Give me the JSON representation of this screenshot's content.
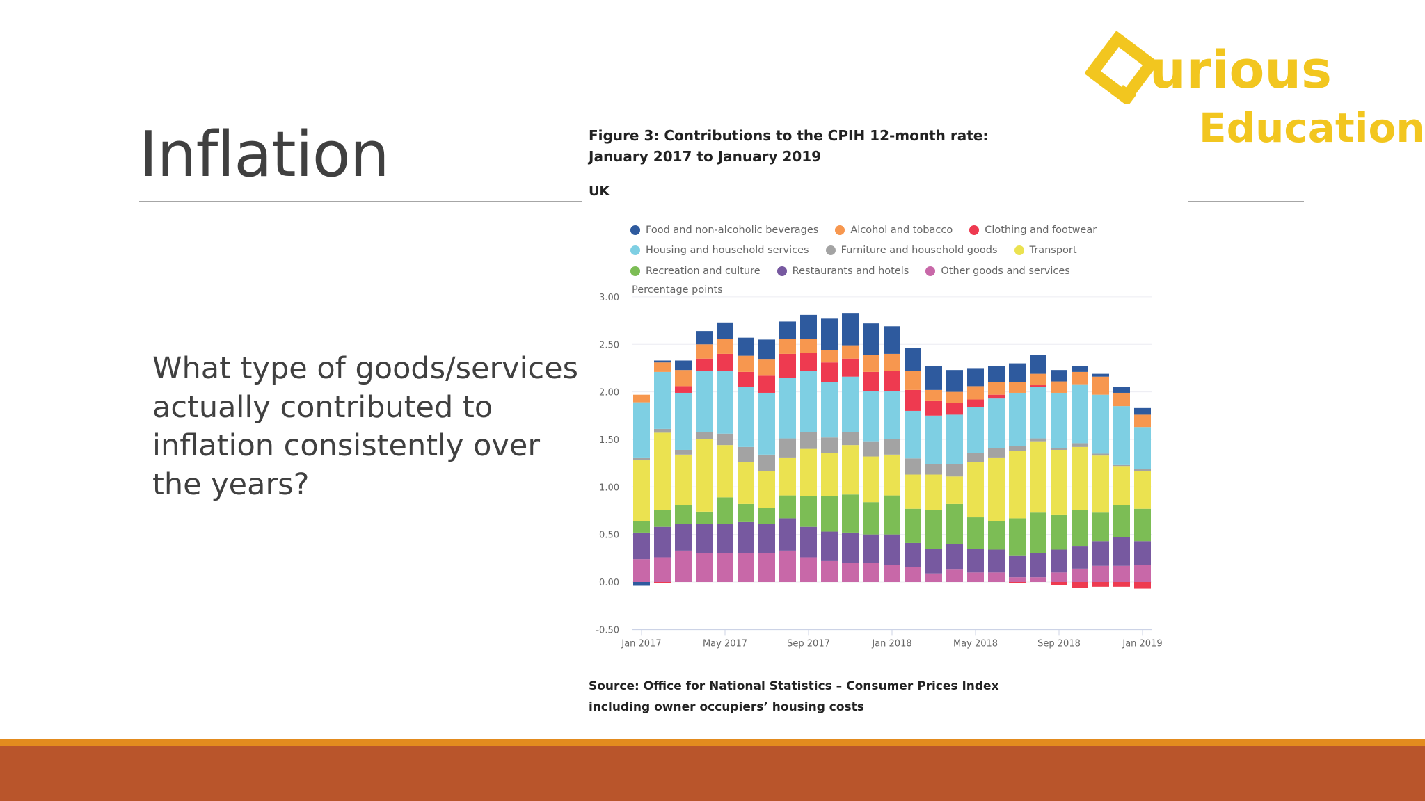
{
  "slide": {
    "title": "Inflation",
    "question": "What type of goods/services actually contributed to inflation consistently over the years?"
  },
  "logo": {
    "word1": "urious",
    "word2": "Education",
    "letter": "Q",
    "color": "#F2C61F"
  },
  "colors": {
    "band_top": "#E38B1E",
    "band": "#B9552B"
  },
  "figure": {
    "title": "Figure 3: Contributions to the CPIH 12-month rate: January 2017 to January 2019",
    "geography": "UK",
    "source": "Source: Office for National Statistics – Consumer Prices Index including owner occupiers’ housing costs"
  },
  "chart_data": {
    "type": "bar",
    "stacked": true,
    "ylabel": "Percentage points",
    "ylim": [
      -0.5,
      3.0
    ],
    "yticks": [
      "3.00",
      "2.50",
      "2.00",
      "1.50",
      "1.00",
      "0.50",
      "0.00",
      "-0.50"
    ],
    "grid": true,
    "legend_position": "top",
    "categories": [
      "Jan 2017",
      "Feb 2017",
      "Mar 2017",
      "Apr 2017",
      "May 2017",
      "Jun 2017",
      "Jul 2017",
      "Aug 2017",
      "Sep 2017",
      "Oct 2017",
      "Nov 2017",
      "Dec 2017",
      "Jan 2018",
      "Feb 2018",
      "Mar 2018",
      "Apr 2018",
      "May 2018",
      "Jun 2018",
      "Jul 2018",
      "Aug 2018",
      "Sep 2018",
      "Oct 2018",
      "Nov 2018",
      "Dec 2018",
      "Jan 2019"
    ],
    "xtick_labels": [
      "Jan 2017",
      "May 2017",
      "Sep 2017",
      "Jan 2018",
      "May 2018",
      "Sep 2018",
      "Jan 2019"
    ],
    "legend_rows": [
      [
        0,
        1,
        2
      ],
      [
        3,
        4,
        5
      ],
      [
        6,
        7,
        8
      ]
    ],
    "stack_order": [
      8,
      7,
      6,
      5,
      4,
      3,
      2,
      1,
      0
    ],
    "series": [
      {
        "name": "Food and non-alcoholic beverages",
        "color": "#2E5A9E",
        "values": [
          -0.04,
          0.02,
          0.1,
          0.14,
          0.17,
          0.19,
          0.21,
          0.18,
          0.25,
          0.33,
          0.34,
          0.33,
          0.29,
          0.24,
          0.25,
          0.23,
          0.19,
          0.17,
          0.2,
          0.2,
          0.12,
          0.06,
          0.03,
          0.06,
          0.07
        ]
      },
      {
        "name": "Alcohol and tobacco",
        "color": "#F7974F",
        "values": [
          0.08,
          0.1,
          0.17,
          0.15,
          0.16,
          0.17,
          0.17,
          0.16,
          0.15,
          0.13,
          0.14,
          0.18,
          0.18,
          0.2,
          0.11,
          0.12,
          0.14,
          0.13,
          0.11,
          0.12,
          0.12,
          0.13,
          0.19,
          0.14,
          0.13
        ]
      },
      {
        "name": "Clothing and footwear",
        "color": "#EE3A50",
        "values": [
          0,
          -0.01,
          0.07,
          0.13,
          0.18,
          0.16,
          0.18,
          0.25,
          0.19,
          0.21,
          0.19,
          0.2,
          0.21,
          0.22,
          0.16,
          0.12,
          0.08,
          0.04,
          -0.01,
          0.02,
          -0.03,
          -0.06,
          -0.05,
          -0.05,
          -0.07
        ]
      },
      {
        "name": "Housing and household services",
        "color": "#7ECFE3",
        "values": [
          0.58,
          0.6,
          0.6,
          0.64,
          0.66,
          0.63,
          0.65,
          0.64,
          0.64,
          0.58,
          0.58,
          0.53,
          0.51,
          0.5,
          0.51,
          0.52,
          0.48,
          0.52,
          0.56,
          0.54,
          0.58,
          0.62,
          0.62,
          0.62,
          0.44
        ]
      },
      {
        "name": "Furniture and household goods",
        "color": "#A3A3A3",
        "values": [
          0.03,
          0.04,
          0.05,
          0.08,
          0.12,
          0.16,
          0.17,
          0.2,
          0.18,
          0.16,
          0.14,
          0.16,
          0.16,
          0.17,
          0.11,
          0.13,
          0.1,
          0.1,
          0.05,
          0.03,
          0.02,
          0.04,
          0.02,
          0.01,
          0.02
        ]
      },
      {
        "name": "Transport",
        "color": "#EBE250",
        "values": [
          0.64,
          0.81,
          0.53,
          0.76,
          0.55,
          0.44,
          0.39,
          0.4,
          0.5,
          0.46,
          0.52,
          0.48,
          0.43,
          0.36,
          0.37,
          0.29,
          0.58,
          0.67,
          0.71,
          0.75,
          0.68,
          0.66,
          0.6,
          0.41,
          0.4
        ]
      },
      {
        "name": "Recreation and culture",
        "color": "#7CBD55",
        "values": [
          0.12,
          0.18,
          0.2,
          0.13,
          0.28,
          0.19,
          0.17,
          0.24,
          0.32,
          0.37,
          0.4,
          0.34,
          0.41,
          0.36,
          0.41,
          0.42,
          0.33,
          0.3,
          0.39,
          0.43,
          0.37,
          0.38,
          0.3,
          0.34,
          0.34
        ]
      },
      {
        "name": "Restaurants and hotels",
        "color": "#7759A0",
        "values": [
          0.28,
          0.32,
          0.28,
          0.31,
          0.31,
          0.33,
          0.31,
          0.34,
          0.32,
          0.31,
          0.32,
          0.3,
          0.32,
          0.25,
          0.26,
          0.27,
          0.25,
          0.24,
          0.23,
          0.25,
          0.24,
          0.24,
          0.26,
          0.3,
          0.25
        ]
      },
      {
        "name": "Other goods and services",
        "color": "#C868A8",
        "values": [
          0.24,
          0.26,
          0.33,
          0.3,
          0.3,
          0.3,
          0.3,
          0.33,
          0.26,
          0.22,
          0.2,
          0.2,
          0.18,
          0.16,
          0.09,
          0.13,
          0.1,
          0.1,
          0.05,
          0.05,
          0.1,
          0.14,
          0.17,
          0.17,
          0.18
        ]
      }
    ]
  }
}
